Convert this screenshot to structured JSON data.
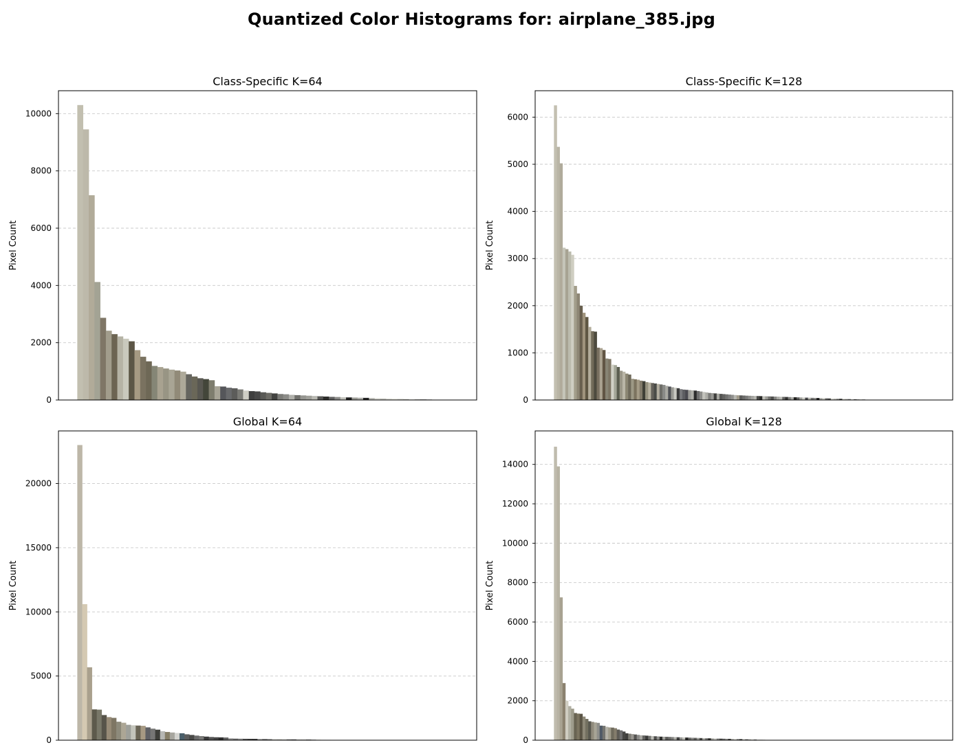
{
  "figure": {
    "title": "Quantized Color Histograms for: airplane_385.jpg"
  },
  "chart_data": [
    {
      "type": "bar",
      "title": "Class-Specific K=64",
      "xlabel": "",
      "ylabel": "Pixel Count",
      "ylim": [
        0,
        10800
      ],
      "yticks": [
        0,
        2000,
        4000,
        6000,
        8000,
        10000
      ],
      "grid": "y-dashed",
      "values": [
        10300,
        9450,
        7150,
        4120,
        2870,
        2420,
        2300,
        2220,
        2140,
        2050,
        1740,
        1510,
        1350,
        1190,
        1150,
        1100,
        1060,
        1030,
        990,
        900,
        820,
        760,
        730,
        690,
        480,
        470,
        430,
        410,
        370,
        330,
        310,
        300,
        270,
        250,
        230,
        210,
        200,
        180,
        170,
        160,
        150,
        140,
        130,
        120,
        110,
        105,
        95,
        90,
        85,
        80,
        75,
        70,
        60,
        55,
        50,
        45,
        40,
        30,
        25,
        22,
        18,
        15,
        12,
        10
      ],
      "colors": [
        "#c2bfb0",
        "#bdb9aa",
        "#b1ab99",
        "#a3a394",
        "#7f7666",
        "#a29d8c",
        "#6c6452",
        "#b5b3a5",
        "#c9c9bd",
        "#5c5646",
        "#a69a83",
        "#7a7260",
        "#6e6856",
        "#858676",
        "#a8a290",
        "#989584",
        "#a9a595",
        "#918a78",
        "#ada999",
        "#65655f",
        "#6a6758",
        "#585751",
        "#43463a",
        "#7e7d6e",
        "#a7a496",
        "#55565a",
        "#696a6c",
        "#5c5c5a",
        "#7b7b76",
        "#cfcec5",
        "#3e3e3e",
        "#474747",
        "#5a5a56",
        "#6d6c66",
        "#434341",
        "#7c7c78",
        "#8c8c88",
        "#b0b0ab",
        "#70706c",
        "#959590",
        "#a0a09a",
        "#b9b9b2",
        "#565654",
        "#2d2d2b",
        "#606060",
        "#8a8a88",
        "#c2c2bb",
        "#1e1e1e",
        "#9a9a94",
        "#aeaeaa",
        "#222222",
        "#bcbcb6",
        "#d5d5ce",
        "#c8c8c2",
        "#dcdcd6",
        "#e2e2dc",
        "#d0d0ca",
        "#b4b4ae",
        "#e6e6e0",
        "#a4a49e",
        "#3a3a3a",
        "#2a2a2a",
        "#c6c6c0",
        "#dadad4"
      ]
    },
    {
      "type": "bar",
      "title": "Class-Specific K=128",
      "xlabel": "",
      "ylabel": "Pixel Count",
      "ylim": [
        0,
        6560
      ],
      "yticks": [
        0,
        1000,
        2000,
        3000,
        4000,
        5000,
        6000
      ],
      "grid": "y-dashed",
      "values": [
        6250,
        5370,
        5020,
        3230,
        3200,
        3150,
        3080,
        2420,
        2260,
        2000,
        1850,
        1760,
        1550,
        1460,
        1450,
        1110,
        1100,
        1060,
        880,
        870,
        750,
        740,
        700,
        620,
        600,
        560,
        540,
        450,
        440,
        430,
        410,
        400,
        380,
        370,
        360,
        350,
        340,
        330,
        320,
        300,
        285,
        270,
        260,
        250,
        230,
        220,
        215,
        210,
        205,
        200,
        190,
        180,
        170,
        160,
        150,
        145,
        140,
        135,
        130,
        125,
        120,
        115,
        110,
        105,
        100,
        98,
        95,
        92,
        90,
        88,
        86,
        84,
        82,
        80,
        78,
        76,
        74,
        72,
        70,
        68,
        66,
        64,
        62,
        60,
        58,
        56,
        54,
        52,
        50,
        48,
        46,
        44,
        42,
        40,
        38,
        36,
        34,
        32,
        30,
        28,
        26,
        24,
        22,
        20,
        18,
        16,
        14,
        12,
        10,
        8,
        6,
        5,
        4,
        3,
        2,
        2,
        1,
        1,
        1,
        1,
        1,
        1,
        1,
        1,
        0,
        0,
        0,
        0
      ],
      "colors": [
        "#c3c0b1",
        "#b9b5a6",
        "#b0ab9b",
        "#c5c5b9",
        "#a7a393",
        "#bcbcae",
        "#cfcec2",
        "#a29d8a",
        "#8d8674",
        "#685f4e",
        "#a0947d",
        "#5f5743",
        "#b3ad9b",
        "#726b59",
        "#4d4a3e",
        "#797060",
        "#aaa290",
        "#615544",
        "#878474",
        "#7e7665",
        "#d1d1c6",
        "#a3a697",
        "#5b5e50",
        "#9a9687",
        "#bab6a7",
        "#8b8673",
        "#6f6a5b",
        "#9d9885",
        "#7c735f",
        "#a49b86",
        "#827b6a",
        "#3f4036",
        "#96927f",
        "#b7b2a0",
        "#64615a",
        "#4a4b47",
        "#b2ad9f",
        "#6d6d68",
        "#898a87",
        "#a8a8a2",
        "#505256",
        "#9a9a94",
        "#c9c9c2",
        "#3b3b3b",
        "#76777a",
        "#5d5e62",
        "#4a4a50",
        "#9c9c98",
        "#b0b0aa",
        "#2d2d2d",
        "#6e6e6e",
        "#8d8d8a",
        "#c3c3bc",
        "#adada7",
        "#7d7d7a",
        "#999995",
        "#3f3f3d",
        "#a7a7a1",
        "#555553",
        "#636361",
        "#727270",
        "#818180",
        "#90908d",
        "#b7b7b1",
        "#a09a8a",
        "#5a5a58",
        "#6b6b69",
        "#7a7a78",
        "#8e8e8b",
        "#a3a39f",
        "#b6b6b0",
        "#484846",
        "#2a2a28",
        "#c1c1ba",
        "#9b9b96",
        "#6f6f6c",
        "#4f4f4d",
        "#858582",
        "#aaaaa5",
        "#bdbdb7",
        "#646462",
        "#333331",
        "#7e7e7b",
        "#acaca7",
        "#222220",
        "#5e5e5c",
        "#9d9d98",
        "#cdcdc6",
        "#46464a",
        "#b8b8b2",
        "#737371",
        "#8a8a87",
        "#181818",
        "#a5a5a0",
        "#c8c8c1",
        "#6a6a68",
        "#50504e",
        "#dadad3",
        "#c0c0ba",
        "#949490",
        "#3c3c3a",
        "#d4d4cd",
        "#b4b4ae",
        "#7b7b79",
        "#e0e0da",
        "#606060",
        "#a1a19c",
        "#cacac4",
        "#2c2c2c",
        "#d8d8d2",
        "#8f8f8c",
        "#bfbfb9",
        "#e4e4de",
        "#575755",
        "#9f9f9a",
        "#c5c5bf",
        "#dcdcd6",
        "#e8e8e2",
        "#a8a8a3",
        "#707070",
        "#b1b1ac",
        "#c7c7c1",
        "#d2d2cc",
        "#bebeb8",
        "#d6d6d0",
        "#eaeaE4",
        "#cfcfc9",
        "#e6e6e0"
      ]
    },
    {
      "type": "bar",
      "title": "Global K=64",
      "xlabel": "",
      "ylabel": "Pixel Count",
      "ylim": [
        0,
        24100
      ],
      "yticks": [
        0,
        5000,
        10000,
        15000,
        20000
      ],
      "grid": "y-dashed",
      "values": [
        23000,
        10600,
        5680,
        2400,
        2380,
        1960,
        1800,
        1740,
        1440,
        1360,
        1200,
        1160,
        1140,
        1120,
        1000,
        900,
        820,
        700,
        640,
        600,
        560,
        540,
        460,
        410,
        360,
        320,
        280,
        250,
        230,
        220,
        210,
        140,
        125,
        120,
        110,
        105,
        100,
        95,
        90,
        85,
        80,
        75,
        70,
        65,
        60,
        55,
        50,
        45,
        40,
        35,
        30,
        28,
        25,
        22,
        20,
        18,
        16,
        14,
        12,
        10,
        8,
        6,
        4,
        2
      ],
      "colors": [
        "#bdb7a8",
        "#d4c9b2",
        "#a9a08d",
        "#5d5a4c",
        "#787768",
        "#57544a",
        "#978b77",
        "#7e7664",
        "#8d8a7b",
        "#aca695",
        "#9ea09a",
        "#c3c4bb",
        "#6a6556",
        "#a69983",
        "#5f6065",
        "#767675",
        "#3e3f3a",
        "#b6b7b3",
        "#867f68",
        "#a7a69f",
        "#d3d3cf",
        "#4b5f6a",
        "#5c5d5d",
        "#4a4a48",
        "#6b6b6b",
        "#7a7a78",
        "#3a3a3a",
        "#555555",
        "#464646",
        "#2f2f2f",
        "#626262",
        "#898989",
        "#717171",
        "#8e8e8e",
        "#525252",
        "#3d3d3d",
        "#2a2a2a",
        "#999999",
        "#5e5e5e",
        "#7d7d7d",
        "#c0c0ba",
        "#aeaea8",
        "#b9b9b3",
        "#6e6e6e",
        "#444444",
        "#a0a09b",
        "#8a8a86",
        "#1e1e1e",
        "#606060",
        "#bdbdb7",
        "#cfcfc9",
        "#9d9d98",
        "#dadad4",
        "#e1e1dc",
        "#b4b4ae",
        "#c6c6c0",
        "#d3d3cd",
        "#a9a9a4",
        "#e5e5e0",
        "#c9c9c3",
        "#dedede",
        "#eaeae4",
        "#d0d0ca",
        "#f0f0ea"
      ]
    },
    {
      "type": "bar",
      "title": "Global K=128",
      "xlabel": "",
      "ylabel": "Pixel Count",
      "ylim": [
        0,
        15700
      ],
      "yticks": [
        0,
        2000,
        4000,
        6000,
        8000,
        10000,
        12000,
        14000
      ],
      "grid": "y-dashed",
      "values": [
        14900,
        13900,
        7250,
        2900,
        2000,
        1730,
        1600,
        1380,
        1350,
        1340,
        1200,
        1080,
        960,
        930,
        900,
        880,
        740,
        730,
        680,
        650,
        640,
        610,
        540,
        500,
        440,
        350,
        330,
        310,
        290,
        270,
        250,
        240,
        230,
        220,
        210,
        200,
        190,
        180,
        175,
        170,
        165,
        160,
        155,
        150,
        145,
        140,
        135,
        130,
        125,
        120,
        115,
        110,
        105,
        100,
        96,
        92,
        88,
        84,
        80,
        76,
        72,
        68,
        64,
        60,
        56,
        52,
        48,
        44,
        40,
        36,
        32,
        28,
        24,
        20,
        16,
        12,
        8,
        4,
        2,
        1,
        0,
        0,
        0,
        0,
        0,
        0,
        0,
        0,
        0,
        0,
        0,
        0,
        0,
        0,
        0,
        0,
        0,
        0,
        0,
        0,
        0,
        0,
        0,
        0,
        0,
        0,
        0,
        0,
        0,
        0,
        0,
        0,
        0,
        0,
        0,
        0,
        0,
        0,
        0,
        0,
        0,
        0,
        0,
        0,
        0,
        0,
        0,
        0
      ],
      "colors": [
        "#c0bcae",
        "#b7b3a4",
        "#a8a291",
        "#8b826f",
        "#cfcdc1",
        "#b1b0a3",
        "#9e9c8c",
        "#686352",
        "#7b7460",
        "#5a5445",
        "#8d8877",
        "#737060",
        "#59584f",
        "#908b7c",
        "#a7a496",
        "#8f8f8b",
        "#505a66",
        "#747470",
        "#b3b1a7",
        "#a19d8d",
        "#6e6a5c",
        "#847d6c",
        "#5d5b55",
        "#6f6f70",
        "#474745",
        "#3f3f3d",
        "#7c7b74",
        "#999690",
        "#555452",
        "#8a8987",
        "#a9a8a3",
        "#636360",
        "#3b3b39",
        "#72726f",
        "#bdbdb7",
        "#4d4d4b",
        "#8f8f8d",
        "#2f2f2d",
        "#a2a29d",
        "#5a5a58",
        "#6b6b69",
        "#7e7e7c",
        "#b0b0aa",
        "#404040",
        "#959592",
        "#c4c4bd",
        "#262626",
        "#666664",
        "#878785",
        "#5e5e5c",
        "#9c9c98",
        "#4a4a48",
        "#b6b6b0",
        "#767674",
        "#2d2d2b",
        "#a6a6a1",
        "#c9c9c2",
        "#838381",
        "#525250",
        "#6e6e6c",
        "#959591",
        "#3a3a38",
        "#adada8",
        "#d0d0c9",
        "#7a7a78",
        "#1e1e1c",
        "#bfbfb9",
        "#575755",
        "#9a9a96",
        "#cbcbc4",
        "#444442",
        "#d6d6cf",
        "#a3a39e",
        "#686866",
        "#b9b9b3",
        "#dadad3",
        "#8c8c89",
        "#e0e0da",
        "#c2c2bc",
        "#e4e4de",
        "#cccccc",
        "#cccccc",
        "#cccccc",
        "#cccccc",
        "#cccccc",
        "#cccccc",
        "#cccccc",
        "#cccccc",
        "#cccccc",
        "#cccccc",
        "#cccccc",
        "#cccccc",
        "#cccccc",
        "#cccccc",
        "#cccccc",
        "#cccccc",
        "#cccccc",
        "#cccccc",
        "#cccccc",
        "#cccccc",
        "#cccccc",
        "#cccccc",
        "#cccccc",
        "#cccccc",
        "#cccccc",
        "#cccccc",
        "#cccccc",
        "#cccccc",
        "#cccccc",
        "#cccccc",
        "#cccccc",
        "#cccccc",
        "#cccccc",
        "#cccccc",
        "#cccccc",
        "#cccccc",
        "#cccccc",
        "#cccccc",
        "#cccccc",
        "#cccccc",
        "#cccccc",
        "#cccccc",
        "#cccccc",
        "#cccccc",
        "#cccccc",
        "#cccccc",
        "#cccccc",
        "#cccccc"
      ]
    }
  ]
}
